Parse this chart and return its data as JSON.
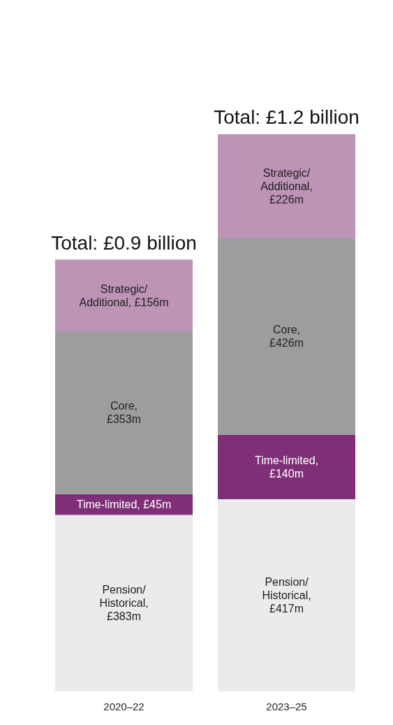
{
  "chart_data": {
    "type": "bar",
    "stacked": true,
    "categories": [
      "2020–22",
      "2023–25"
    ],
    "series": [
      {
        "color": "#ebebeb",
        "values": [
          383,
          417
        ],
        "value_labels": [
          "Pension/\nHistorical,\n£383m",
          "Pension/\nHistorical,\n£417m"
        ]
      },
      {
        "color": "#7f2f78",
        "values": [
          45,
          140
        ],
        "value_labels": [
          "Time-limited, £45m",
          "Time-limited,\n£140m"
        ]
      },
      {
        "color": "#9d9d9b",
        "values": [
          353,
          426
        ],
        "value_labels": [
          "Core,\n£353m",
          "Core,\n£426m"
        ]
      },
      {
        "color": "#bd93b6",
        "values": [
          156,
          226
        ],
        "value_labels": [
          "Strategic/\nAdditional, £156m",
          "Strategic/\nAdditional,\n£226m"
        ]
      }
    ],
    "totals": [
      "Total: £0.9 billion",
      "Total: £1.2 billion"
    ]
  }
}
